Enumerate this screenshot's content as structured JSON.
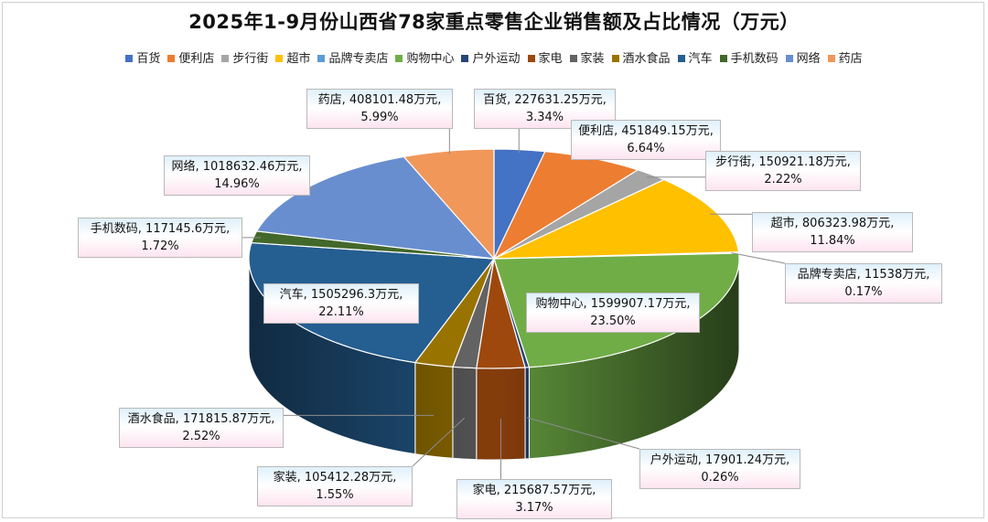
{
  "chart_data": {
    "type": "pie",
    "title": "2025年1-9月份山西省78家重点零售企业销售额及占比情况（万元）",
    "unit": "万元",
    "legend_position": "top",
    "slices": [
      {
        "name": "百货",
        "value": 227631.25,
        "percent": "3.34%",
        "value_text": "227631.25万元",
        "color": "#4472c4"
      },
      {
        "name": "便利店",
        "value": 451849.15,
        "percent": "6.64%",
        "value_text": "451849.15万元",
        "color": "#ed7d31"
      },
      {
        "name": "步行街",
        "value": 150921.18,
        "percent": "2.22%",
        "value_text": "150921.18万元",
        "color": "#a5a5a5"
      },
      {
        "name": "超市",
        "value": 806323.98,
        "percent": "11.84%",
        "value_text": "806323.98万元",
        "color": "#ffc000"
      },
      {
        "name": "品牌专卖店",
        "value": 11538,
        "percent": "0.17%",
        "value_text": "11538万元",
        "color": "#5b9bd5"
      },
      {
        "name": "购物中心",
        "value": 1599907.17,
        "percent": "23.50%",
        "value_text": "1599907.17万元",
        "color": "#70ad47"
      },
      {
        "name": "户外运动",
        "value": 17901.24,
        "percent": "0.26%",
        "value_text": "17901.24万元",
        "color": "#264478"
      },
      {
        "name": "家电",
        "value": 215687.57,
        "percent": "3.17%",
        "value_text": "215687.57万元",
        "color": "#9e480e"
      },
      {
        "name": "家装",
        "value": 105412.28,
        "percent": "1.55%",
        "value_text": "105412.28万元",
        "color": "#636363"
      },
      {
        "name": "酒水食品",
        "value": 171815.87,
        "percent": "2.52%",
        "value_text": "171815.87万元",
        "color": "#997300"
      },
      {
        "name": "汽车",
        "value": 1505296.3,
        "percent": "22.11%",
        "value_text": "1505296.3万元",
        "color": "#255e91"
      },
      {
        "name": "手机数码",
        "value": 117145.6,
        "percent": "1.72%",
        "value_text": "117145.6万元",
        "color": "#43682b"
      },
      {
        "name": "网络",
        "value": 1018632.46,
        "percent": "14.96%",
        "value_text": "1018632.46万元",
        "color": "#698ed0"
      },
      {
        "name": "药店",
        "value": 408101.48,
        "percent": "5.99%",
        "value_text": "408101.48万元",
        "color": "#f1975a"
      }
    ]
  }
}
